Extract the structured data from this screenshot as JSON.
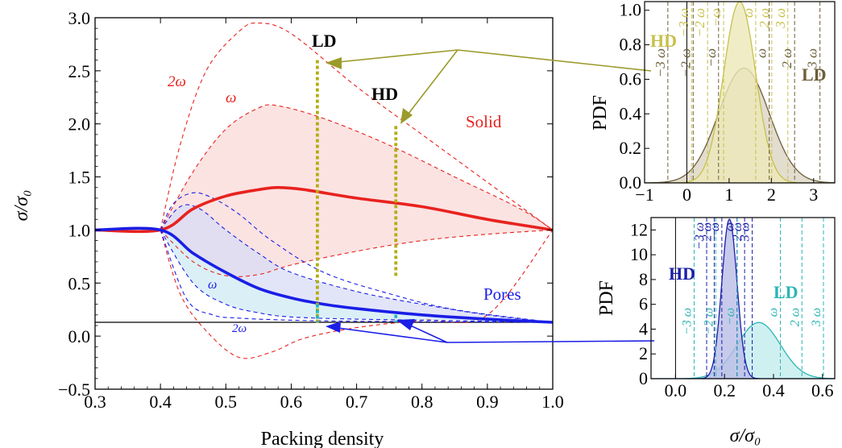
{
  "chart_data": [
    {
      "id": "main",
      "type": "line",
      "xlabel": "Packing density",
      "ylabel": "σ/σ₀",
      "xlim": [
        0.3,
        1.0
      ],
      "ylim": [
        -0.5,
        3.0
      ],
      "x_ticks": [
        "0.3",
        "0.4",
        "0.5",
        "0.6",
        "0.7",
        "0.8",
        "0.9",
        "1.0"
      ],
      "y_ticks": [
        "−0.5",
        "0.0",
        "0.5",
        "1.0",
        "1.5",
        "2.0",
        "2.5",
        "3.0"
      ],
      "x_tick_values": [
        0.3,
        0.4,
        0.5,
        0.6,
        0.7,
        0.8,
        0.9,
        1.0
      ],
      "y_tick_values": [
        -0.5,
        0,
        0.5,
        1.0,
        1.5,
        2.0,
        2.5,
        3.0
      ],
      "grid": false,
      "reference_line_y": 0.13,
      "solid": {
        "label": "Solid",
        "color": "#e8221e",
        "mean": [
          [
            0.3,
            1.0
          ],
          [
            0.4,
            1.0
          ],
          [
            0.45,
            1.2
          ],
          [
            0.5,
            1.32
          ],
          [
            0.55,
            1.38
          ],
          [
            0.58,
            1.4
          ],
          [
            0.62,
            1.38
          ],
          [
            0.7,
            1.3
          ],
          [
            0.8,
            1.22
          ],
          [
            0.9,
            1.1
          ],
          [
            1.0,
            1.0
          ]
        ],
        "plus1": [
          [
            0.4,
            1.0
          ],
          [
            0.45,
            1.55
          ],
          [
            0.5,
            1.95
          ],
          [
            0.55,
            2.15
          ],
          [
            0.58,
            2.17
          ],
          [
            0.65,
            2.05
          ],
          [
            0.75,
            1.8
          ],
          [
            0.85,
            1.5
          ],
          [
            0.95,
            1.2
          ],
          [
            1.0,
            1.0
          ]
        ],
        "plus2": [
          [
            0.4,
            1.0
          ],
          [
            0.43,
            1.8
          ],
          [
            0.47,
            2.5
          ],
          [
            0.52,
            2.87
          ],
          [
            0.55,
            2.95
          ],
          [
            0.6,
            2.85
          ],
          [
            0.7,
            2.35
          ],
          [
            0.8,
            1.9
          ],
          [
            0.9,
            1.45
          ],
          [
            1.0,
            1.0
          ]
        ],
        "minus1": [
          [
            0.4,
            1.0
          ],
          [
            0.45,
            0.7
          ],
          [
            0.5,
            0.57
          ],
          [
            0.55,
            0.58
          ],
          [
            0.6,
            0.67
          ],
          [
            0.7,
            0.8
          ],
          [
            0.8,
            0.9
          ],
          [
            0.9,
            0.96
          ],
          [
            1.0,
            1.0
          ]
        ],
        "minus2": [
          [
            0.4,
            1.0
          ],
          [
            0.43,
            0.4
          ],
          [
            0.47,
            0.05
          ],
          [
            0.52,
            -0.2
          ],
          [
            0.57,
            -0.15
          ],
          [
            0.62,
            -0.02
          ],
          [
            0.7,
            0.08
          ],
          [
            0.8,
            0.15
          ],
          [
            0.9,
            0.2
          ],
          [
            1.0,
            1.0
          ]
        ]
      },
      "pores": {
        "label": "Pores",
        "color": "#1a1ee6",
        "mean": [
          [
            0.3,
            1.0
          ],
          [
            0.4,
            1.0
          ],
          [
            0.45,
            0.78
          ],
          [
            0.5,
            0.6
          ],
          [
            0.55,
            0.45
          ],
          [
            0.6,
            0.36
          ],
          [
            0.65,
            0.3
          ],
          [
            0.7,
            0.26
          ],
          [
            0.8,
            0.2
          ],
          [
            0.9,
            0.16
          ],
          [
            1.0,
            0.13
          ]
        ],
        "plus1": [
          [
            0.4,
            1.0
          ],
          [
            0.43,
            1.22
          ],
          [
            0.46,
            1.2
          ],
          [
            0.5,
            1.0
          ],
          [
            0.55,
            0.78
          ],
          [
            0.6,
            0.6
          ],
          [
            0.7,
            0.42
          ],
          [
            0.8,
            0.3
          ],
          [
            0.9,
            0.2
          ],
          [
            1.0,
            0.13
          ]
        ],
        "plus2": [
          [
            0.4,
            1.0
          ],
          [
            0.42,
            1.25
          ],
          [
            0.45,
            1.35
          ],
          [
            0.48,
            1.3
          ],
          [
            0.52,
            1.15
          ],
          [
            0.57,
            0.9
          ],
          [
            0.65,
            0.6
          ],
          [
            0.75,
            0.4
          ],
          [
            0.85,
            0.25
          ],
          [
            1.0,
            0.13
          ]
        ],
        "minus1": [
          [
            0.4,
            1.0
          ],
          [
            0.45,
            0.5
          ],
          [
            0.5,
            0.3
          ],
          [
            0.55,
            0.22
          ],
          [
            0.6,
            0.18
          ],
          [
            0.7,
            0.16
          ],
          [
            0.8,
            0.15
          ],
          [
            0.9,
            0.14
          ],
          [
            1.0,
            0.13
          ]
        ],
        "minus2": [
          [
            0.4,
            1.0
          ],
          [
            0.44,
            0.35
          ],
          [
            0.48,
            0.2
          ],
          [
            0.52,
            0.17
          ],
          [
            0.6,
            0.15
          ],
          [
            0.7,
            0.14
          ],
          [
            0.85,
            0.135
          ],
          [
            1.0,
            0.13
          ]
        ]
      },
      "verticals": [
        {
          "label": "LD",
          "x": 0.64,
          "y_top": 2.6,
          "y_bottom": 0.12,
          "pore_cut": 0.3
        },
        {
          "label": "HD",
          "x": 0.76,
          "y_top": 1.98,
          "y_bottom": 0.55,
          "pore_cut": 0.2
        }
      ],
      "annotations": {
        "solid_2w": "2ω",
        "solid_w": "ω",
        "pore_w": "ω",
        "pore_2w": "2ω",
        "solid_label": "Solid",
        "pore_label": "Pores",
        "ld": "LD",
        "hd": "HD"
      }
    },
    {
      "id": "pdf-solid",
      "type": "area",
      "xlabel": "",
      "ylabel": "PDF",
      "xlim": [
        -1,
        3.5
      ],
      "ylim": [
        0,
        1.05
      ],
      "x_ticks": [
        "−1",
        "0",
        "1",
        "2",
        "3"
      ],
      "y_ticks": [
        "0.0",
        "0.2",
        "0.4",
        "0.6",
        "0.8",
        "1.0"
      ],
      "x_tick_values": [
        -1,
        0,
        1,
        2,
        3
      ],
      "y_tick_values": [
        0,
        0.2,
        0.4,
        0.6,
        0.8,
        1.0
      ],
      "series": [
        {
          "name": "HD",
          "mean": 1.25,
          "sd": 0.38,
          "color": "#c7c04a",
          "fill": "#ece9b8",
          "sigma_labels": [
            "−3 ω",
            "−2 ω",
            "−ω",
            "ω",
            "2 ω",
            "3 ω"
          ]
        },
        {
          "name": "LD",
          "mean": 1.35,
          "sd": 0.6,
          "color": "#6b5e3a",
          "fill": "#dcd5c4",
          "sigma_labels": [
            "−3 ω",
            "−2 ω",
            "−ω",
            "ω",
            "2 ω",
            "3 ω"
          ]
        }
      ],
      "labels": {
        "hd": "HD",
        "ld": "LD",
        "ylabel": "PDF"
      }
    },
    {
      "id": "pdf-pores",
      "type": "area",
      "xlabel": "σ/σ₀",
      "ylabel": "PDF",
      "xlim": [
        -0.1,
        0.65
      ],
      "ylim": [
        0,
        13
      ],
      "x_ticks": [
        "0.0",
        "0.2",
        "0.4",
        "0.6"
      ],
      "y_ticks": [
        "0",
        "2",
        "4",
        "6",
        "8",
        "10",
        "12"
      ],
      "x_tick_values": [
        0,
        0.2,
        0.4,
        0.6
      ],
      "y_tick_values": [
        0,
        2,
        4,
        6,
        8,
        10,
        12
      ],
      "series": [
        {
          "name": "HD",
          "mean": 0.22,
          "sd": 0.031,
          "color": "#1a1ea8",
          "fill": "#b9bde6",
          "sigma_labels": [
            "−3 ω",
            "−2 ω",
            "−ω",
            "ω",
            "2 ω",
            "3 ω"
          ]
        },
        {
          "name": "LD",
          "mean": 0.34,
          "sd": 0.088,
          "color": "#2bb5b5",
          "fill": "#c3ecec",
          "sigma_labels": [
            "−3 ω",
            "−2 ω",
            "−ω",
            "ω",
            "2 ω",
            "3 ω"
          ]
        }
      ],
      "labels": {
        "hd": "HD",
        "ld": "LD",
        "ylabel": "PDF",
        "xlabel": "σ/σ₀"
      }
    }
  ]
}
